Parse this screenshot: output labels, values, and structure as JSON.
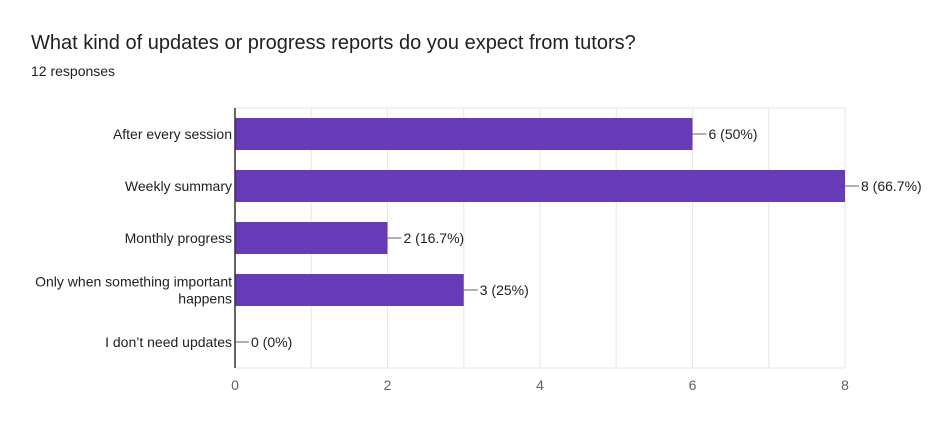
{
  "question": {
    "title": "What kind of updates or progress reports do you expect from tutors?",
    "responses": "12 responses"
  },
  "colors": {
    "bar": "#673ab7",
    "grid": "#e6e6e6",
    "axis": "#333333",
    "text": "#202124",
    "tick": "#5f6368"
  },
  "chart_data": {
    "type": "bar",
    "orientation": "horizontal",
    "title": "What kind of updates or progress reports do you expect from tutors?",
    "categories": [
      "After every session",
      "Weekly summary",
      "Monthly progress",
      "Only when something important happens",
      "I don’t need updates"
    ],
    "category_lines": [
      [
        "After every session"
      ],
      [
        "Weekly summary"
      ],
      [
        "Monthly progress"
      ],
      [
        "Only when something important",
        "happens"
      ],
      [
        "I don’t need updates"
      ]
    ],
    "values": [
      6,
      8,
      2,
      3,
      0
    ],
    "data_labels": [
      "6 (50%)",
      "8 (66.7%)",
      "2 (16.7%)",
      "3 (25%)",
      "0 (0%)"
    ],
    "xlim": [
      0,
      8
    ],
    "xticks": [
      0,
      2,
      4,
      6,
      8
    ],
    "xlabel": "",
    "ylabel": "",
    "grid": true,
    "legend": "none"
  }
}
